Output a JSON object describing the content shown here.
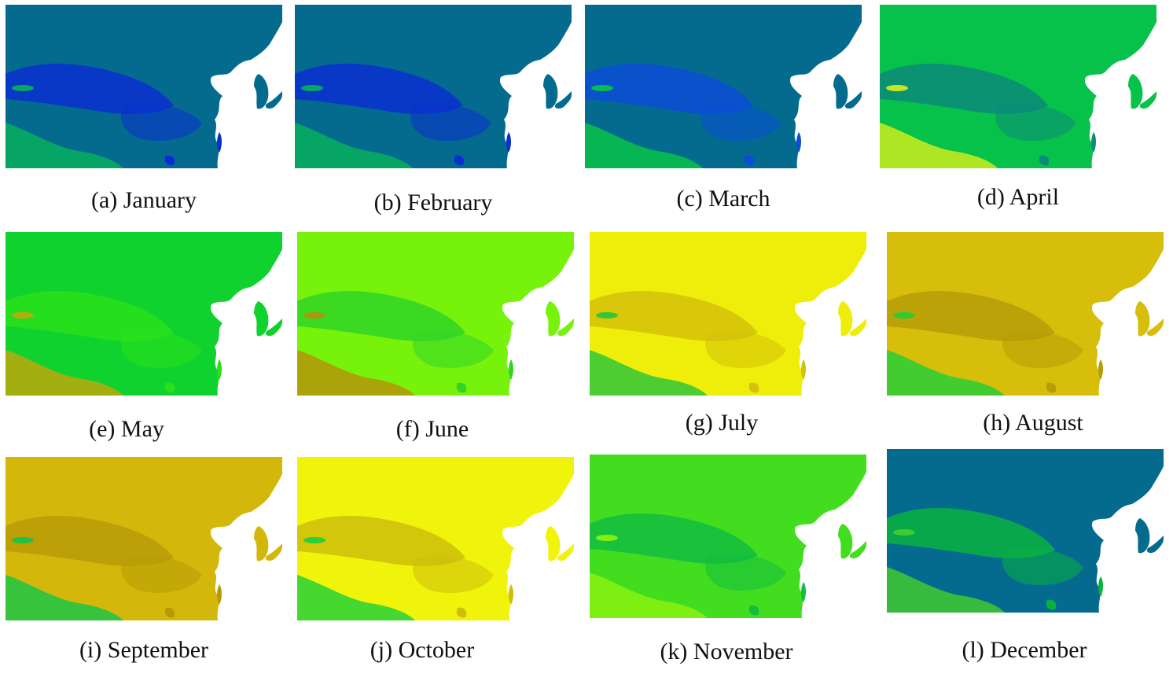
{
  "figure": {
    "panels": [
      {
        "caption": "(a) January",
        "palette": {
          "base": "#046b8f",
          "mid": "#0a2fd0",
          "accent": "#07b35a"
        }
      },
      {
        "caption": "(b) February",
        "palette": {
          "base": "#046b8f",
          "mid": "#0a2fd0",
          "accent": "#07b35a"
        }
      },
      {
        "caption": "(c) March",
        "palette": {
          "base": "#046b8f",
          "mid": "#0a4ed6",
          "accent": "#09c844"
        }
      },
      {
        "caption": "(d) April",
        "palette": {
          "base": "#07c24a",
          "mid": "#0c8a7a",
          "accent": "#d9ef1a"
        }
      },
      {
        "caption": "(e) May",
        "palette": {
          "base": "#10d22f",
          "mid": "#29e01a",
          "accent": "#c8a60a"
        }
      },
      {
        "caption": "(f) June",
        "palette": {
          "base": "#77f20a",
          "mid": "#31d528",
          "accent": "#b78f09"
        }
      },
      {
        "caption": "(g) July",
        "palette": {
          "base": "#eeee0a",
          "mid": "#d4c109",
          "accent": "#24c43b"
        }
      },
      {
        "caption": "(h) August",
        "palette": {
          "base": "#d7be0a",
          "mid": "#b69d08",
          "accent": "#1ecf3a"
        }
      },
      {
        "caption": "(i) September",
        "palette": {
          "base": "#d3b80b",
          "mid": "#b89a08",
          "accent": "#11c54a"
        }
      },
      {
        "caption": "(j) October",
        "palette": {
          "base": "#f0f40a",
          "mid": "#cdbe0b",
          "accent": "#1ccf3b"
        }
      },
      {
        "caption": "(k) November",
        "palette": {
          "base": "#43dd20",
          "mid": "#12bd3f",
          "accent": "#8cf410"
        }
      },
      {
        "caption": "(l) December",
        "palette": {
          "base": "#046b8f",
          "mid": "#0ab140",
          "accent": "#44d02b"
        }
      }
    ],
    "sea_color": "#ffffff"
  }
}
